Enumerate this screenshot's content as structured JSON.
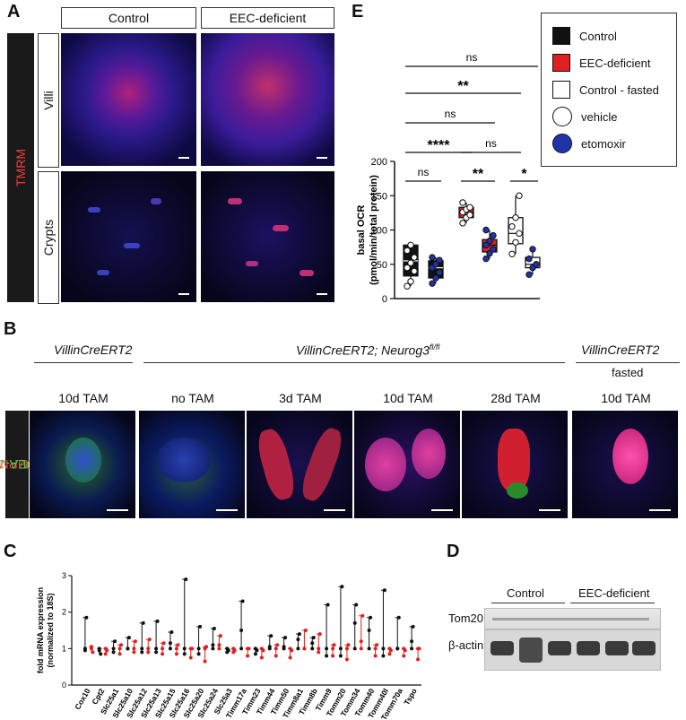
{
  "panels": {
    "A": "A",
    "B": "B",
    "C": "C",
    "D": "D",
    "E": "E"
  },
  "panelA": {
    "col_control": "Control",
    "col_eec": "EEC-deficient",
    "row_villi": "Villi",
    "row_crypts": "Crypts",
    "stain": "TMRM"
  },
  "panelB": {
    "genotype_1": "VillinCreERT2",
    "genotype_2": "VillinCreERT2; Neurog3",
    "genotype_2_sup": "fl/fl",
    "genotype_3": "VillinCreERT2",
    "genotype_3_sub": "fasted",
    "conditions": [
      "10d TAM",
      "no TAM",
      "3d TAM",
      "10d TAM",
      "28d TAM",
      "10d TAM"
    ],
    "stain_red": "TMRM",
    "stain_green": "UEA-1"
  },
  "panelD": {
    "group_control": "Control",
    "group_eec": "EEC-deficient",
    "row_tom20": "Tom20",
    "row_actin": "β-actin"
  },
  "legendE": {
    "items": [
      {
        "label": "Control",
        "swatch": "#111111",
        "shape": "square"
      },
      {
        "label": "EEC-deficient",
        "swatch": "#e02020",
        "shape": "square"
      },
      {
        "label": "Control - fasted",
        "swatch": "#ffffff",
        "shape": "square"
      },
      {
        "label": "vehicle",
        "swatch": "#ffffff",
        "shape": "circle"
      },
      {
        "label": "etomoxir",
        "swatch": "#2233aa",
        "shape": "circle"
      }
    ]
  },
  "chart_data": [
    {
      "id": "E",
      "type": "box",
      "ylabel": "basal OCR (pmol/min/total protein)",
      "ylabel_line1": "basal OCR",
      "ylabel_line2": "(pmol/min/total protein)",
      "ylim": [
        0,
        200
      ],
      "yticks": [
        "0",
        "50",
        "100",
        "150",
        "200"
      ],
      "groups": [
        {
          "condition": "Control",
          "treatment": "vehicle",
          "q1": 33,
          "median": 55,
          "q3": 78,
          "min": 18,
          "max": 78,
          "points": [
            18,
            25,
            40,
            45,
            52,
            60,
            70,
            78
          ]
        },
        {
          "condition": "Control",
          "treatment": "etomoxir",
          "q1": 30,
          "median": 45,
          "q3": 55,
          "min": 22,
          "max": 60,
          "points": [
            22,
            30,
            38,
            45,
            50,
            56,
            60
          ]
        },
        {
          "condition": "EEC-deficient",
          "treatment": "vehicle",
          "q1": 118,
          "median": 126,
          "q3": 133,
          "min": 110,
          "max": 140,
          "points": [
            110,
            118,
            122,
            126,
            130,
            133,
            140
          ]
        },
        {
          "condition": "EEC-deficient",
          "treatment": "etomoxir",
          "q1": 68,
          "median": 78,
          "q3": 86,
          "min": 58,
          "max": 100,
          "points": [
            58,
            66,
            72,
            78,
            84,
            92,
            100
          ]
        },
        {
          "condition": "Control - fasted",
          "treatment": "vehicle",
          "q1": 80,
          "median": 95,
          "q3": 118,
          "min": 65,
          "max": 150,
          "points": [
            65,
            82,
            95,
            105,
            118,
            150
          ]
        },
        {
          "condition": "Control - fasted",
          "treatment": "etomoxir",
          "q1": 45,
          "median": 50,
          "q3": 60,
          "min": 35,
          "max": 72,
          "points": [
            35,
            45,
            50,
            58,
            72
          ]
        }
      ],
      "significance": [
        {
          "label": "ns",
          "from": 0,
          "to": 1
        },
        {
          "label": "**",
          "from": 2,
          "to": 3
        },
        {
          "label": "*",
          "from": 4,
          "to": 5
        },
        {
          "label": "****",
          "from": 0,
          "to": 2
        },
        {
          "label": "ns",
          "from": 2,
          "to": 4
        },
        {
          "label": "ns",
          "from": 0,
          "to": 3
        },
        {
          "label": "**",
          "from": 0,
          "to": 4
        },
        {
          "label": "ns",
          "from": 0,
          "to": 5
        }
      ]
    },
    {
      "id": "C",
      "type": "scatter",
      "ylabel": "fold mRNA expression (normalized to 18S)",
      "ylabel_line1": "fold mRNA expression",
      "ylabel_line2": "(normalized to 18S)",
      "ylim": [
        0,
        3
      ],
      "yticks": [
        "0",
        "1",
        "2",
        "3"
      ],
      "categories": [
        "Cox10",
        "Cpt2",
        "Slc25a1",
        "Slc25a10",
        "Slc25a12",
        "Slc25a13",
        "Slc25a15",
        "Slc25a16",
        "Slc25a20",
        "Slc25a24",
        "Slc25a3",
        "Timm17a",
        "Timm23",
        "Timm44",
        "Timm50",
        "Timm8a1",
        "Timm8b",
        "Timm9",
        "Tomm20",
        "Tomm34",
        "Tomm40",
        "Tomm40l",
        "Tomm70a",
        "Tspo"
      ],
      "series": [
        {
          "name": "Control",
          "color": "#111111",
          "points": [
            [
              1,
              1.85,
              0.95
            ],
            [
              1,
              0.85,
              0.95
            ],
            [
              1,
              1.2,
              0.9
            ],
            [
              1,
              1.3,
              1.0
            ],
            [
              1,
              1.7,
              0.9
            ],
            [
              1,
              1.75,
              0.9
            ],
            [
              1,
              1.45,
              1.15
            ],
            [
              1,
              2.9,
              0.85
            ],
            [
              1,
              1.6,
              0.85
            ],
            [
              1,
              1.55,
              1.1
            ],
            [
              1,
              0.95,
              0.9
            ],
            [
              1,
              2.3,
              1.5
            ],
            [
              1,
              0.95,
              0.85
            ],
            [
              1,
              1.35,
              1.05
            ],
            [
              1,
              1.3,
              1.05
            ],
            [
              1,
              1.4,
              1.25
            ],
            [
              1,
              1.3,
              1.15
            ],
            [
              1,
              2.2,
              0.8
            ],
            [
              1,
              2.7,
              0.8
            ],
            [
              1,
              2.2,
              1.7
            ],
            [
              1,
              1.85,
              1.5
            ],
            [
              1,
              2.6,
              0.8
            ],
            [
              1,
              1.85,
              1.0
            ],
            [
              1,
              1.6,
              1.2
            ]
          ]
        },
        {
          "name": "EEC-deficient",
          "color": "#e02020",
          "points": [
            [
              1,
              0.9,
              1.05
            ],
            [
              1,
              0.95,
              0.85
            ],
            [
              1,
              1.1,
              0.85
            ],
            [
              1,
              1.2,
              0.9
            ],
            [
              1,
              1.25,
              0.9
            ],
            [
              1,
              1.15,
              0.85
            ],
            [
              1,
              1.1,
              0.85
            ],
            [
              1,
              1.0,
              0.75
            ],
            [
              1,
              1.05,
              0.65
            ],
            [
              1,
              1.35,
              1.1
            ],
            [
              1,
              0.95,
              0.9
            ],
            [
              1,
              1.0,
              0.8
            ],
            [
              1,
              0.95,
              0.75
            ],
            [
              1,
              1.1,
              0.8
            ],
            [
              1,
              0.95,
              0.75
            ],
            [
              1,
              1.5,
              1.0
            ],
            [
              1,
              1.4,
              0.9
            ],
            [
              1,
              1.1,
              0.8
            ],
            [
              1,
              1.1,
              0.7
            ],
            [
              1,
              1.9,
              1.2
            ],
            [
              1,
              1.1,
              0.8
            ],
            [
              1,
              0.95,
              0.85
            ],
            [
              1,
              0.95,
              0.8
            ],
            [
              1,
              1.0,
              0.7
            ]
          ]
        }
      ]
    }
  ]
}
